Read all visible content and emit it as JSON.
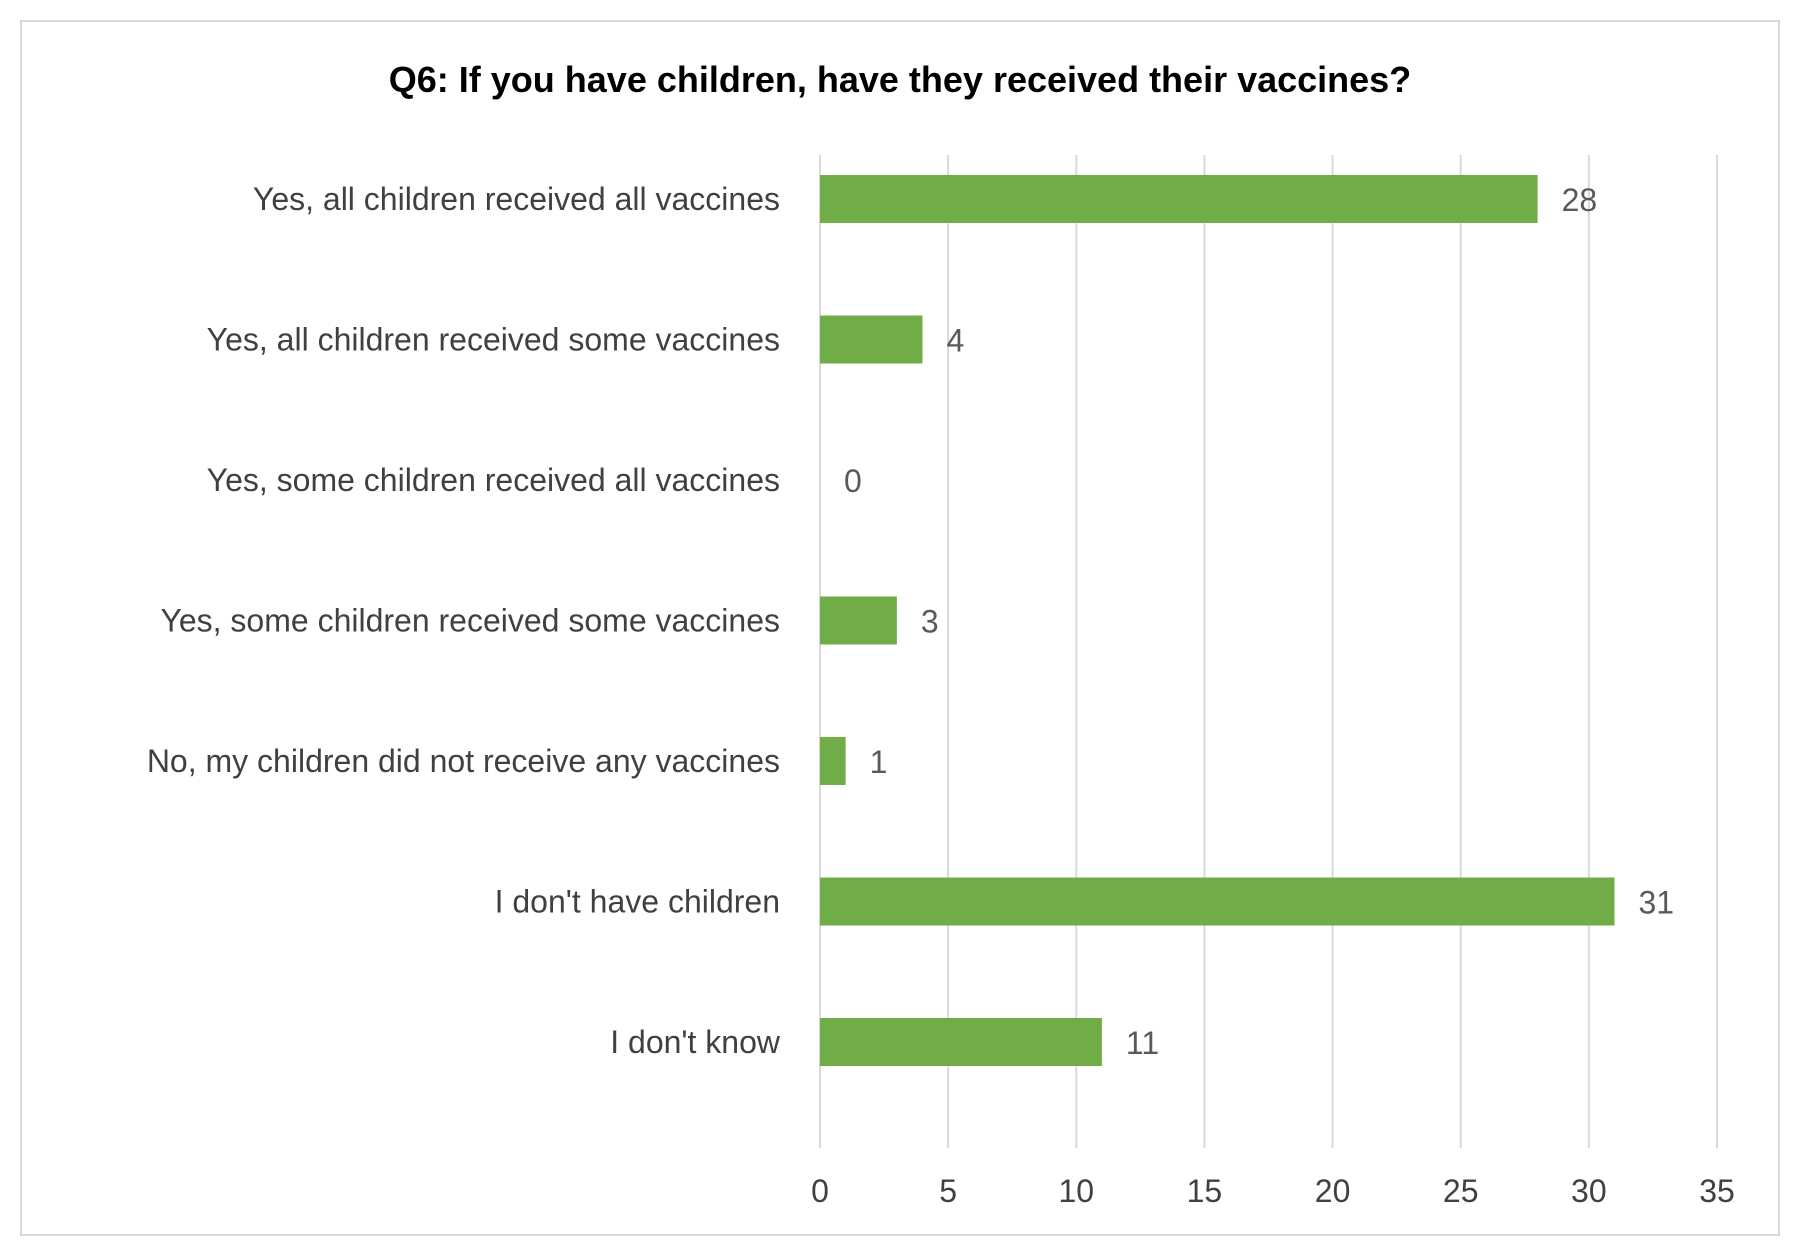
{
  "chart_data": {
    "type": "bar",
    "orientation": "horizontal",
    "title": "Q6: If you have children, have they received their vaccines?",
    "xlabel": "",
    "ylabel": "",
    "categories": [
      "Yes, all children received all vaccines",
      "Yes, all children received some vaccines",
      "Yes, some children received all vaccines",
      "Yes, some children received some vaccines",
      "No, my children did not receive any vaccines",
      "I don't have children",
      "I don't know"
    ],
    "values": [
      28,
      4,
      0,
      3,
      1,
      31,
      11
    ],
    "xlim": [
      0,
      35
    ],
    "xticks": [
      0,
      5,
      10,
      15,
      20,
      25,
      30,
      35
    ],
    "grid": "vertical",
    "legend": "none",
    "data_labels": true,
    "bar_color": "#70ad47",
    "grid_color": "#d9d9d9",
    "text_color": "#404040",
    "label_color": "#595959"
  }
}
